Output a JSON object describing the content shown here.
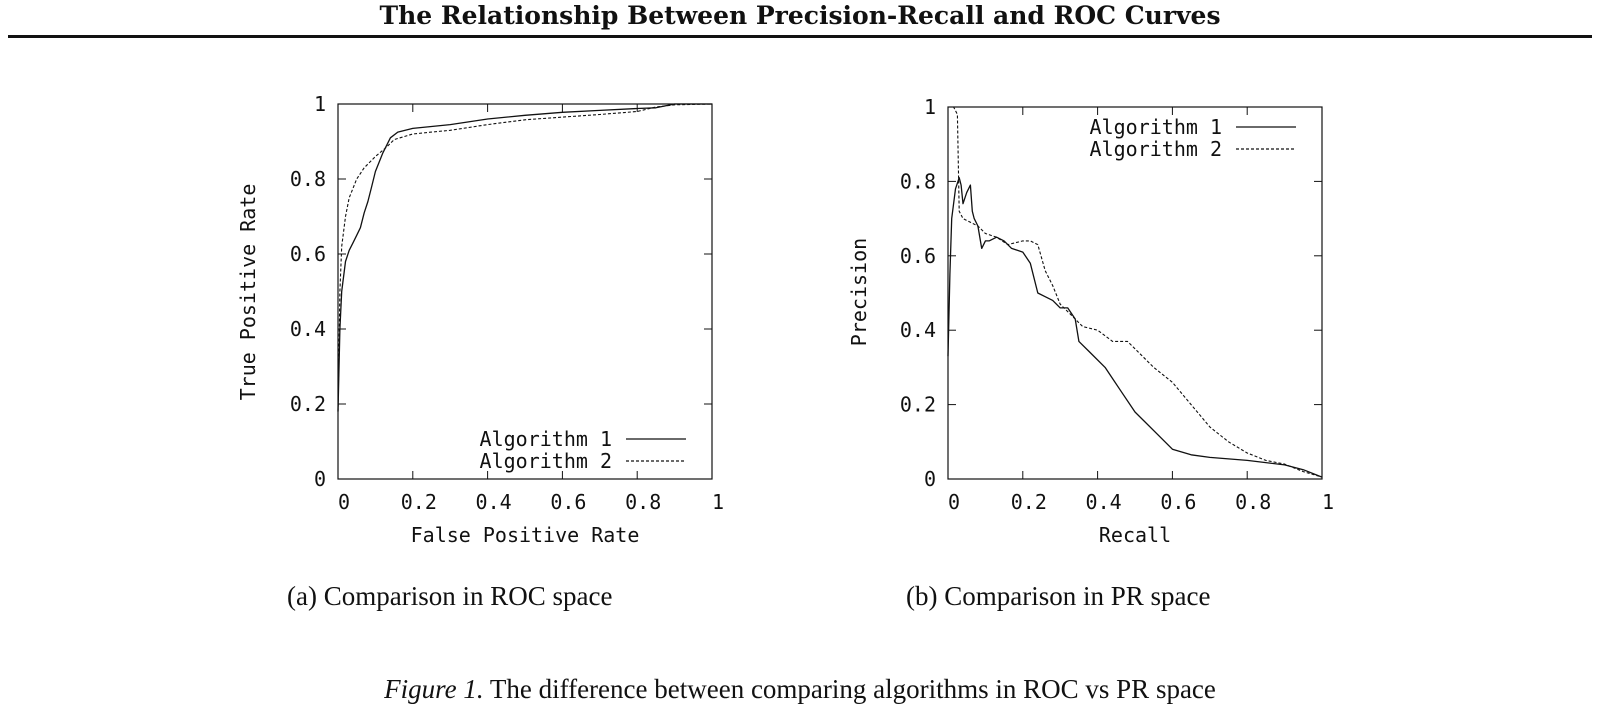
{
  "header": {
    "title": "The Relationship Between Precision-Recall and ROC Curves"
  },
  "colors": {
    "ink": "#111111",
    "background": "#ffffff"
  },
  "chart_data": [
    {
      "type": "line",
      "id": "roc",
      "xlabel": "False Positive Rate",
      "ylabel": "True Positive Rate",
      "xlim": [
        0,
        1
      ],
      "ylim": [
        0,
        1
      ],
      "xticks": [
        {
          "value": 0,
          "label": "0"
        },
        {
          "value": 0.2,
          "label": "0.2"
        },
        {
          "value": 0.4,
          "label": "0.4"
        },
        {
          "value": 0.6,
          "label": "0.6"
        },
        {
          "value": 0.8,
          "label": "0.8"
        },
        {
          "value": 1,
          "label": "1"
        }
      ],
      "yticks": [
        {
          "value": 0,
          "label": "0"
        },
        {
          "value": 0.2,
          "label": "0.2"
        },
        {
          "value": 0.4,
          "label": "0.4"
        },
        {
          "value": 0.6,
          "label": "0.6"
        },
        {
          "value": 0.8,
          "label": "0.8"
        },
        {
          "value": 1,
          "label": "1"
        }
      ],
      "legend_position": "bottom-right",
      "series": [
        {
          "name": "Algorithm 1",
          "style": "solid",
          "x": [
            0,
            0.005,
            0.01,
            0.02,
            0.03,
            0.04,
            0.05,
            0.06,
            0.07,
            0.08,
            0.09,
            0.1,
            0.12,
            0.14,
            0.16,
            0.2,
            0.25,
            0.3,
            0.4,
            0.5,
            0.6,
            0.7,
            0.8,
            0.85,
            0.9,
            1.0
          ],
          "y": [
            0.18,
            0.4,
            0.5,
            0.58,
            0.61,
            0.63,
            0.65,
            0.67,
            0.71,
            0.74,
            0.78,
            0.82,
            0.87,
            0.91,
            0.925,
            0.935,
            0.94,
            0.945,
            0.96,
            0.97,
            0.978,
            0.983,
            0.988,
            0.99,
            1.0,
            1.0
          ]
        },
        {
          "name": "Algorithm 2",
          "style": "dashed",
          "x": [
            0,
            0.005,
            0.01,
            0.02,
            0.03,
            0.05,
            0.07,
            0.1,
            0.13,
            0.15,
            0.2,
            0.25,
            0.3,
            0.4,
            0.5,
            0.6,
            0.7,
            0.8,
            0.85,
            0.9,
            1.0
          ],
          "y": [
            0.18,
            0.5,
            0.62,
            0.7,
            0.75,
            0.8,
            0.83,
            0.86,
            0.885,
            0.905,
            0.92,
            0.925,
            0.93,
            0.945,
            0.958,
            0.965,
            0.972,
            0.98,
            0.992,
            0.998,
            1.0
          ]
        }
      ]
    },
    {
      "type": "line",
      "id": "pr",
      "xlabel": "Recall",
      "ylabel": "Precision",
      "xlim": [
        0,
        1
      ],
      "ylim": [
        0,
        1
      ],
      "xticks": [
        {
          "value": 0,
          "label": "0"
        },
        {
          "value": 0.2,
          "label": "0.2"
        },
        {
          "value": 0.4,
          "label": "0.4"
        },
        {
          "value": 0.6,
          "label": "0.6"
        },
        {
          "value": 0.8,
          "label": "0.8"
        },
        {
          "value": 1,
          "label": "1"
        }
      ],
      "yticks": [
        {
          "value": 0,
          "label": "0"
        },
        {
          "value": 0.2,
          "label": "0.2"
        },
        {
          "value": 0.4,
          "label": "0.4"
        },
        {
          "value": 0.6,
          "label": "0.6"
        },
        {
          "value": 0.8,
          "label": "0.8"
        },
        {
          "value": 1,
          "label": "1"
        }
      ],
      "legend_position": "top-right",
      "series": [
        {
          "name": "Algorithm 1",
          "style": "solid",
          "x": [
            0,
            0.005,
            0.01,
            0.02,
            0.03,
            0.035,
            0.04,
            0.05,
            0.06,
            0.065,
            0.07,
            0.08,
            0.09,
            0.1,
            0.11,
            0.13,
            0.15,
            0.17,
            0.2,
            0.22,
            0.24,
            0.26,
            0.28,
            0.3,
            0.32,
            0.34,
            0.35,
            0.38,
            0.42,
            0.46,
            0.5,
            0.55,
            0.6,
            0.65,
            0.7,
            0.8,
            0.9,
            0.95,
            1.0
          ],
          "y": [
            0.33,
            0.55,
            0.7,
            0.78,
            0.81,
            0.79,
            0.74,
            0.77,
            0.79,
            0.72,
            0.7,
            0.68,
            0.62,
            0.64,
            0.64,
            0.65,
            0.64,
            0.62,
            0.61,
            0.58,
            0.5,
            0.49,
            0.48,
            0.46,
            0.46,
            0.43,
            0.37,
            0.34,
            0.3,
            0.24,
            0.18,
            0.13,
            0.08,
            0.065,
            0.058,
            0.05,
            0.038,
            0.025,
            0.005
          ]
        },
        {
          "name": "Algorithm 2",
          "style": "dashed",
          "x": [
            0,
            0.01,
            0.015,
            0.025,
            0.03,
            0.04,
            0.06,
            0.08,
            0.1,
            0.13,
            0.16,
            0.2,
            0.22,
            0.24,
            0.26,
            0.28,
            0.3,
            0.32,
            0.34,
            0.36,
            0.4,
            0.44,
            0.48,
            0.5,
            0.55,
            0.6,
            0.65,
            0.7,
            0.75,
            0.8,
            0.85,
            0.9,
            0.95,
            1.0
          ],
          "y": [
            1.0,
            1.0,
            1.0,
            0.98,
            0.72,
            0.7,
            0.69,
            0.68,
            0.66,
            0.65,
            0.63,
            0.64,
            0.64,
            0.63,
            0.56,
            0.52,
            0.47,
            0.45,
            0.43,
            0.41,
            0.4,
            0.37,
            0.37,
            0.35,
            0.3,
            0.26,
            0.2,
            0.14,
            0.1,
            0.07,
            0.05,
            0.04,
            0.02,
            0.005
          ]
        }
      ]
    }
  ],
  "subcaptions": {
    "a": "(a) Comparison in ROC space",
    "b": "(b) Comparison in PR space"
  },
  "figure_caption": {
    "label": "Figure 1.",
    "text": "The difference between comparing algorithms in ROC vs PR space"
  }
}
